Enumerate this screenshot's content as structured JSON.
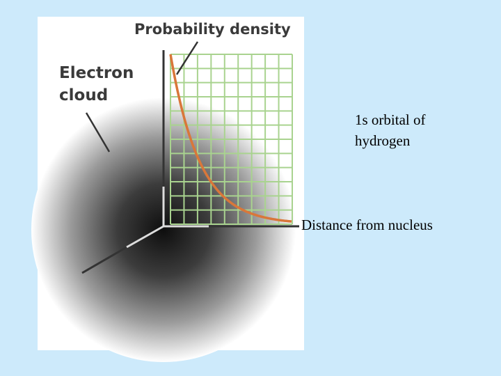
{
  "diagram": {
    "labels": {
      "probability_density": "Probability density",
      "electron_cloud": [
        "Electron",
        "cloud"
      ],
      "orbital": [
        "1s orbital of",
        "hydrogen"
      ],
      "distance": "Distance from nucleus"
    }
  }
}
